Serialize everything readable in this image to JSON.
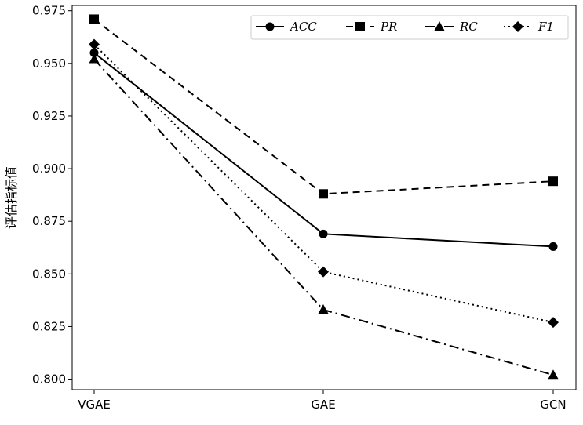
{
  "chart_data": {
    "type": "line",
    "categories": [
      "VGAE",
      "GAE",
      "GCN"
    ],
    "ylabel": "评估指标值",
    "xlabel": "",
    "ylim": [
      0.795,
      0.9775
    ],
    "yticks": [
      "0.800",
      "0.825",
      "0.850",
      "0.875",
      "0.900",
      "0.925",
      "0.950",
      "0.975"
    ],
    "grid": false,
    "legend_position": "top-right",
    "series": [
      {
        "name": "ACC",
        "values": [
          0.955,
          0.869,
          0.863
        ],
        "marker": "circle",
        "dash": "solid",
        "color": "#000000"
      },
      {
        "name": "PR",
        "values": [
          0.971,
          0.888,
          0.894
        ],
        "marker": "square",
        "dash": "dashed",
        "color": "#000000"
      },
      {
        "name": "RC",
        "values": [
          0.952,
          0.833,
          0.802
        ],
        "marker": "triangle",
        "dash": "dashdot",
        "color": "#000000"
      },
      {
        "name": "F1",
        "values": [
          0.959,
          0.851,
          0.827
        ],
        "marker": "diamond",
        "dash": "dotted",
        "color": "#000000"
      }
    ]
  }
}
